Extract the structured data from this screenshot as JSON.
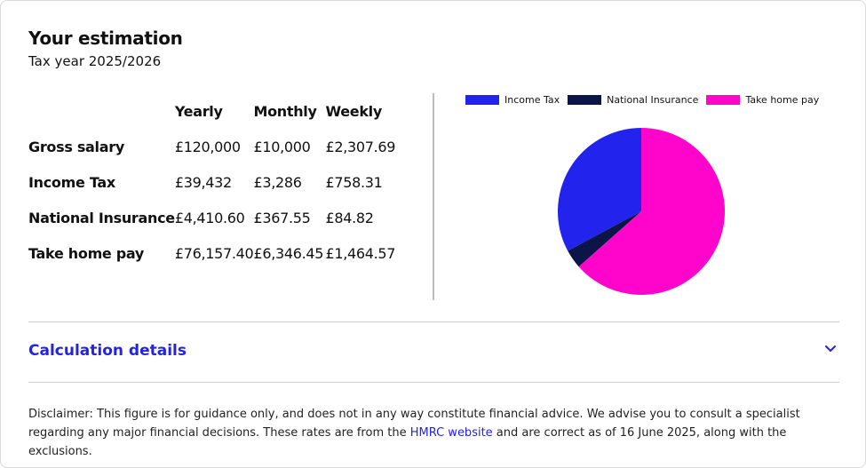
{
  "header": {
    "title": "Your estimation",
    "subtitle": "Tax year 2025/2026"
  },
  "table": {
    "columns": [
      "Yearly",
      "Monthly",
      "Weekly"
    ],
    "rows": [
      {
        "label": "Gross salary",
        "yearly": "£120,000",
        "monthly": "£10,000",
        "weekly": "£2,307.69"
      },
      {
        "label": "Income Tax",
        "yearly": "£39,432",
        "monthly": "£3,286",
        "weekly": "£758.31"
      },
      {
        "label": "National Insurance",
        "yearly": "£4,410.60",
        "monthly": "£367.55",
        "weekly": "£84.82"
      },
      {
        "label": "Take home pay",
        "yearly": "£76,157.40",
        "monthly": "£6,346.45",
        "weekly": "£1,464.57"
      }
    ]
  },
  "chart_data": {
    "type": "pie",
    "legend_position": "top",
    "series": [
      {
        "name": "Income Tax",
        "value": 39432,
        "color": "#2323ee"
      },
      {
        "name": "National Insurance",
        "value": 4410.6,
        "color": "#0b1547"
      },
      {
        "name": "Take home pay",
        "value": 76157.4,
        "color": "#ff05cc"
      }
    ]
  },
  "details": {
    "label": "Calculation details",
    "icon": "chevron-down-icon"
  },
  "disclaimer": {
    "before": "Disclaimer: This figure is for guidance only, and does not in any way constitute financial advice. We advise you to consult a specialist regarding any major financial decisions. These rates are from the ",
    "link_text": "HMRC website",
    "after": " and are correct as of 16 June 2025, along with the exclusions."
  }
}
